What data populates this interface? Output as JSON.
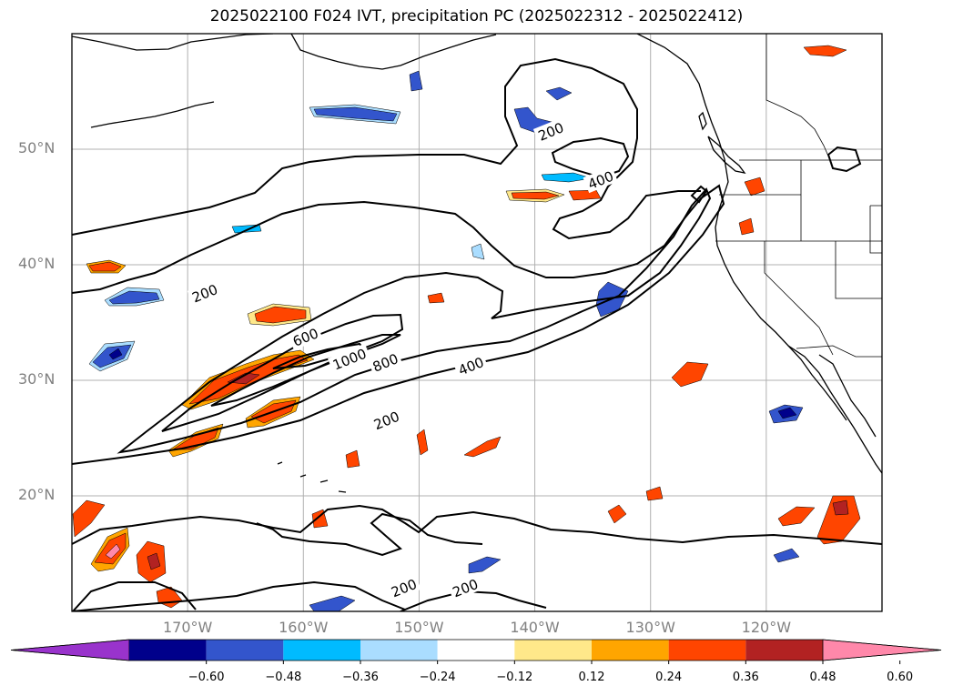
{
  "title": "2025022100 F024 IVT, precipitation PC (2025022312 - 2025022412)",
  "map": {
    "lon_range": [
      -180,
      -110
    ],
    "lat_range": [
      10,
      60
    ],
    "lat_ticks": [
      {
        "value": 20,
        "label": "20°N"
      },
      {
        "value": 30,
        "label": "30°N"
      },
      {
        "value": 40,
        "label": "40°N"
      },
      {
        "value": 50,
        "label": "50°N"
      }
    ],
    "lon_ticks": [
      {
        "value": -170,
        "label": "170°W"
      },
      {
        "value": -160,
        "label": "160°W"
      },
      {
        "value": -150,
        "label": "150°W"
      },
      {
        "value": -140,
        "label": "140°W"
      },
      {
        "value": -130,
        "label": "130°W"
      },
      {
        "value": -120,
        "label": "120°W"
      }
    ],
    "ivt_contour_labels": [
      {
        "text": "200",
        "lon": -168.5,
        "lat": 37.5
      },
      {
        "text": "600",
        "lon": -159.8,
        "lat": 33.7
      },
      {
        "text": "1000",
        "lon": -156.0,
        "lat": 31.8
      },
      {
        "text": "800",
        "lon": -152.9,
        "lat": 31.5
      },
      {
        "text": "400",
        "lon": -145.5,
        "lat": 31.2
      },
      {
        "text": "200",
        "lon": -152.8,
        "lat": 26.5
      },
      {
        "text": "200",
        "lon": -138.6,
        "lat": 51.5
      },
      {
        "text": "400",
        "lon": -134.3,
        "lat": 47.3
      },
      {
        "text": "200",
        "lon": -151.3,
        "lat": 12.0
      },
      {
        "text": "200",
        "lon": -146.0,
        "lat": 12.0
      }
    ],
    "colors": {
      "grid": "#b0b0b0",
      "contour": "#000000",
      "coast": "#000000"
    }
  },
  "colorbar": {
    "boundaries": [
      -0.72,
      -0.6,
      -0.48,
      -0.36,
      -0.24,
      -0.12,
      0.12,
      0.24,
      0.36,
      0.48,
      0.6,
      0.72
    ],
    "colors": [
      "#9933cc",
      "#00008b",
      "#3355cc",
      "#00bbff",
      "#aaddff",
      "#ffffff",
      "#ffe88a",
      "#ffa500",
      "#ff4500",
      "#b22222",
      "#ff88aa"
    ],
    "labels": [
      "−0.60",
      "−0.48",
      "−0.36",
      "−0.24",
      "−0.12",
      "0.12",
      "0.24",
      "0.36",
      "0.48",
      "0.60"
    ],
    "extend": "both"
  }
}
